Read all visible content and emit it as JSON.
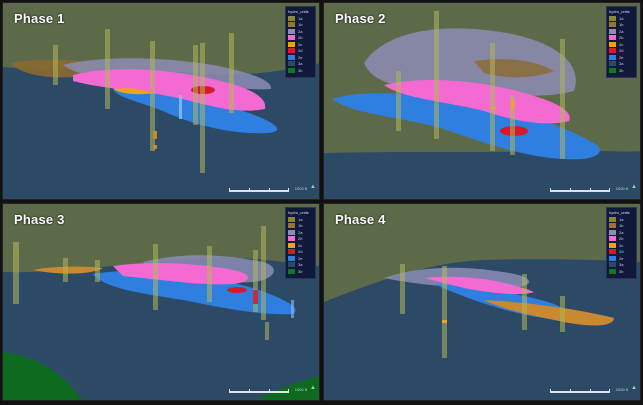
{
  "panels": [
    {
      "title": "Phase 1"
    },
    {
      "title": "Phase 2"
    },
    {
      "title": "Phase 3"
    },
    {
      "title": "Phase 4"
    }
  ],
  "legend": {
    "title": "hydro_units",
    "items": [
      {
        "label": "1a",
        "color": "#8a8a2a"
      },
      {
        "label": "1b",
        "color": "#9a7434"
      },
      {
        "label": "2a",
        "color": "#8c8cb4"
      },
      {
        "label": "2b",
        "color": "#f36bd2"
      },
      {
        "label": "2c",
        "color": "#f6a11c"
      },
      {
        "label": "2d",
        "color": "#d8172a"
      },
      {
        "label": "2e",
        "color": "#2f7fe0"
      },
      {
        "label": "3a",
        "color": "#2e4a6a"
      },
      {
        "label": "3b",
        "color": "#0d7a22"
      }
    ]
  },
  "scale": {
    "label": "1000 ft"
  },
  "colors": {
    "sky": "#5d6a4a",
    "ground": "#2c4a66",
    "well": "#b2b85a",
    "pink": "#f36bd2",
    "blue": "#2f7fe0",
    "lavender": "#8c8cb4",
    "orange": "#c98930",
    "red": "#d8172a",
    "green": "#0d6a1e"
  }
}
